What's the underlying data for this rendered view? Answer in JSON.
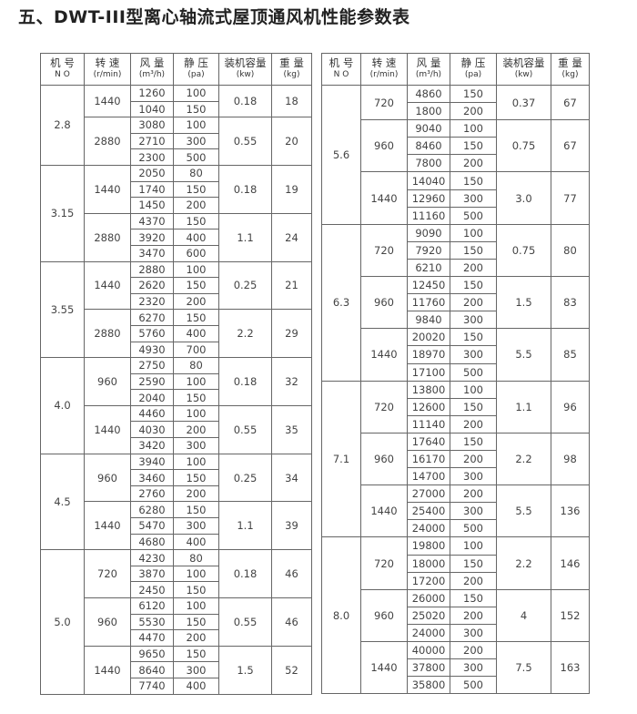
{
  "title": "五、DWT-III型离心轴流式屋顶通风机性能参数表",
  "headers": [
    {
      "label": "机 号",
      "unit": "N O"
    },
    {
      "label": "转 速",
      "unit": "(r/min)"
    },
    {
      "label": "风 量",
      "unit": "(m³/h)"
    },
    {
      "label": "静 压",
      "unit": "(pa)"
    },
    {
      "label": "装机容量",
      "unit": "(kw)"
    },
    {
      "label": "重 量",
      "unit": "(kg)"
    }
  ],
  "left_table": [
    {
      "no": "2.8",
      "speeds": [
        {
          "rpm": "1440",
          "power": "0.18",
          "weight": "18",
          "rows": [
            [
              "1260",
              "100"
            ],
            [
              "1040",
              "150"
            ]
          ]
        },
        {
          "rpm": "2880",
          "power": "0.55",
          "weight": "20",
          "rows": [
            [
              "3080",
              "100"
            ],
            [
              "2710",
              "300"
            ],
            [
              "2300",
              "500"
            ]
          ]
        }
      ]
    },
    {
      "no": "3.15",
      "speeds": [
        {
          "rpm": "1440",
          "power": "0.18",
          "weight": "19",
          "rows": [
            [
              "2050",
              "80"
            ],
            [
              "1740",
              "150"
            ],
            [
              "1450",
              "200"
            ]
          ]
        },
        {
          "rpm": "2880",
          "power": "1.1",
          "weight": "24",
          "rows": [
            [
              "4370",
              "150"
            ],
            [
              "3920",
              "400"
            ],
            [
              "3470",
              "600"
            ]
          ]
        }
      ]
    },
    {
      "no": "3.55",
      "speeds": [
        {
          "rpm": "1440",
          "power": "0.25",
          "weight": "21",
          "rows": [
            [
              "2880",
              "100"
            ],
            [
              "2620",
              "150"
            ],
            [
              "2320",
              "200"
            ]
          ]
        },
        {
          "rpm": "2880",
          "power": "2.2",
          "weight": "29",
          "rows": [
            [
              "6270",
              "150"
            ],
            [
              "5760",
              "400"
            ],
            [
              "4930",
              "700"
            ]
          ]
        }
      ]
    },
    {
      "no": "4.0",
      "speeds": [
        {
          "rpm": "960",
          "power": "0.18",
          "weight": "32",
          "rows": [
            [
              "2750",
              "80"
            ],
            [
              "2590",
              "100"
            ],
            [
              "2040",
              "150"
            ]
          ]
        },
        {
          "rpm": "1440",
          "power": "0.55",
          "weight": "35",
          "rows": [
            [
              "4460",
              "100"
            ],
            [
              "4030",
              "200"
            ],
            [
              "3420",
              "300"
            ]
          ]
        }
      ]
    },
    {
      "no": "4.5",
      "speeds": [
        {
          "rpm": "960",
          "power": "0.25",
          "weight": "34",
          "rows": [
            [
              "3940",
              "100"
            ],
            [
              "3460",
              "150"
            ],
            [
              "2760",
              "200"
            ]
          ]
        },
        {
          "rpm": "1440",
          "power": "1.1",
          "weight": "39",
          "rows": [
            [
              "6280",
              "150"
            ],
            [
              "5470",
              "300"
            ],
            [
              "4680",
              "400"
            ]
          ]
        }
      ]
    },
    {
      "no": "5.0",
      "speeds": [
        {
          "rpm": "720",
          "power": "0.18",
          "weight": "46",
          "rows": [
            [
              "4230",
              "80"
            ],
            [
              "3870",
              "100"
            ],
            [
              "2450",
              "150"
            ]
          ]
        },
        {
          "rpm": "960",
          "power": "0.55",
          "weight": "46",
          "rows": [
            [
              "6120",
              "100"
            ],
            [
              "5530",
              "150"
            ],
            [
              "4470",
              "200"
            ]
          ]
        },
        {
          "rpm": "1440",
          "power": "1.5",
          "weight": "52",
          "rows": [
            [
              "9650",
              "150"
            ],
            [
              "8640",
              "300"
            ],
            [
              "7740",
              "400"
            ]
          ]
        }
      ]
    }
  ],
  "right_table": [
    {
      "no": "5.6",
      "speeds": [
        {
          "rpm": "720",
          "power": "0.37",
          "weight": "67",
          "rows": [
            [
              "4860",
              "150"
            ],
            [
              "1800",
              "200"
            ]
          ]
        },
        {
          "rpm": "960",
          "power": "0.75",
          "weight": "67",
          "rows": [
            [
              "9040",
              "100"
            ],
            [
              "8460",
              "150"
            ],
            [
              "7800",
              "200"
            ]
          ]
        },
        {
          "rpm": "1440",
          "power": "3.0",
          "weight": "77",
          "rows": [
            [
              "14040",
              "150"
            ],
            [
              "12960",
              "300"
            ],
            [
              "11160",
              "500"
            ]
          ]
        }
      ]
    },
    {
      "no": "6.3",
      "speeds": [
        {
          "rpm": "720",
          "power": "0.75",
          "weight": "80",
          "rows": [
            [
              "9090",
              "100"
            ],
            [
              "7920",
              "150"
            ],
            [
              "6210",
              "200"
            ]
          ]
        },
        {
          "rpm": "960",
          "power": "1.5",
          "weight": "83",
          "rows": [
            [
              "12450",
              "150"
            ],
            [
              "11760",
              "200"
            ],
            [
              "9840",
              "300"
            ]
          ]
        },
        {
          "rpm": "1440",
          "power": "5.5",
          "weight": "85",
          "rows": [
            [
              "20020",
              "150"
            ],
            [
              "18970",
              "300"
            ],
            [
              "17100",
              "500"
            ]
          ]
        }
      ]
    },
    {
      "no": "7.1",
      "speeds": [
        {
          "rpm": "720",
          "power": "1.1",
          "weight": "96",
          "rows": [
            [
              "13800",
              "100"
            ],
            [
              "12600",
              "150"
            ],
            [
              "11140",
              "200"
            ]
          ]
        },
        {
          "rpm": "960",
          "power": "2.2",
          "weight": "98",
          "rows": [
            [
              "17640",
              "150"
            ],
            [
              "16170",
              "200"
            ],
            [
              "14700",
              "300"
            ]
          ]
        },
        {
          "rpm": "1440",
          "power": "5.5",
          "weight": "136",
          "rows": [
            [
              "27000",
              "200"
            ],
            [
              "25400",
              "300"
            ],
            [
              "24000",
              "500"
            ]
          ]
        }
      ]
    },
    {
      "no": "8.0",
      "speeds": [
        {
          "rpm": "720",
          "power": "2.2",
          "weight": "146",
          "rows": [
            [
              "19800",
              "100"
            ],
            [
              "18000",
              "150"
            ],
            [
              "17200",
              "200"
            ]
          ]
        },
        {
          "rpm": "960",
          "power": "4",
          "weight": "152",
          "rows": [
            [
              "26000",
              "150"
            ],
            [
              "25020",
              "200"
            ],
            [
              "24000",
              "300"
            ]
          ]
        },
        {
          "rpm": "1440",
          "power": "7.5",
          "weight": "163",
          "rows": [
            [
              "40000",
              "200"
            ],
            [
              "37800",
              "300"
            ],
            [
              "35800",
              "500"
            ]
          ]
        }
      ]
    }
  ]
}
